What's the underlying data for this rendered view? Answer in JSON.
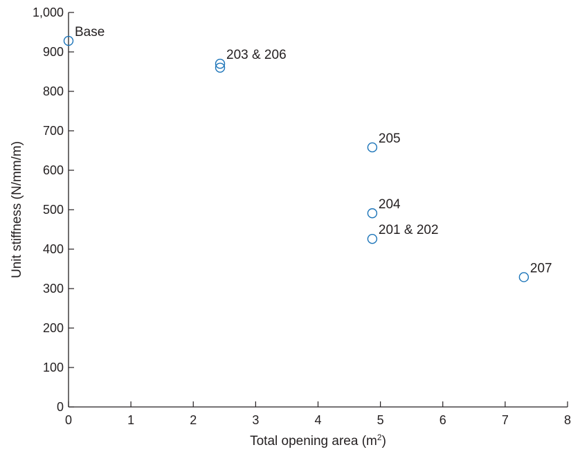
{
  "chart_data": {
    "type": "scatter",
    "xlabel": "Total opening area (m",
    "xlabel_sup": "2",
    "xlabel_end": ")",
    "ylabel": "Unit stiffness (N/mm/m)",
    "xlim": [
      0,
      8
    ],
    "ylim": [
      0,
      1000
    ],
    "xticks": [
      "0",
      "1",
      "2",
      "3",
      "4",
      "5",
      "6",
      "7",
      "8"
    ],
    "yticks": [
      "0",
      "100",
      "200",
      "300",
      "400",
      "500",
      "600",
      "700",
      "800",
      "900",
      "1,000"
    ],
    "grid": false,
    "marker_color": "#1a73b8",
    "points": [
      {
        "x": 0,
        "y": 928
      },
      {
        "x": 2.43,
        "y": 870
      },
      {
        "x": 2.43,
        "y": 860
      },
      {
        "x": 4.87,
        "y": 658
      },
      {
        "x": 4.87,
        "y": 491
      },
      {
        "x": 4.87,
        "y": 426
      },
      {
        "x": 7.3,
        "y": 329
      }
    ],
    "labels": [
      {
        "text": "Base",
        "x": 0,
        "y": 928
      },
      {
        "text": "203 & 206",
        "x": 2.43,
        "y": 870
      },
      {
        "text": "205",
        "x": 4.87,
        "y": 658
      },
      {
        "text": "204",
        "x": 4.87,
        "y": 491
      },
      {
        "text": "201 & 202",
        "x": 4.87,
        "y": 426
      },
      {
        "text": "207",
        "x": 7.3,
        "y": 329
      }
    ]
  }
}
